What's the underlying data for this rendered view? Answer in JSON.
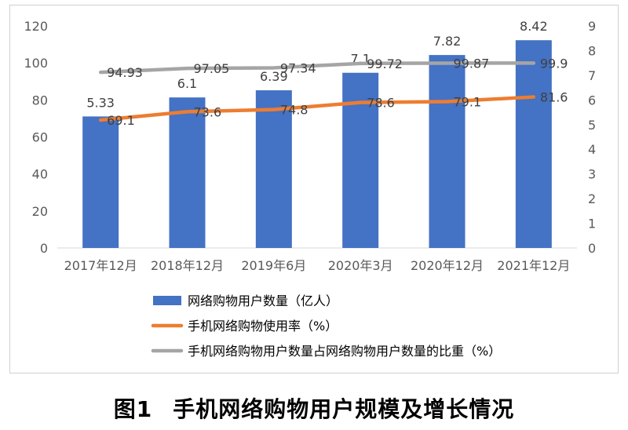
{
  "chart_data": {
    "type": "bar",
    "categories": [
      "2017年12月",
      "2018年12月",
      "2019年6月",
      "2020年3月",
      "2020年12月",
      "2021年12月"
    ],
    "left_axis": {
      "min": 0,
      "max": 120,
      "step": 20
    },
    "right_axis": {
      "min": 0,
      "max": 9,
      "step": 1
    },
    "series": [
      {
        "name": "网络购物用户数量（亿人）",
        "kind": "bar",
        "axis": "right",
        "values": [
          5.33,
          6.1,
          6.39,
          7.1,
          7.82,
          8.42
        ],
        "labels": [
          "5.33",
          "6.1",
          "6.39",
          "7.1",
          "7.82",
          "8.42"
        ],
        "color": "#4472C4"
      },
      {
        "name": "手机网络购物使用率（%）",
        "kind": "line",
        "axis": "left",
        "values": [
          69.1,
          73.6,
          74.8,
          78.6,
          79.1,
          81.6
        ],
        "labels": [
          "69.1",
          "73.6",
          "74.8",
          "78.6",
          "79.1",
          "81.6"
        ],
        "color": "#ED7D31"
      },
      {
        "name": "手机网络购物用户数量占网络购物用户数量的比重（%）",
        "kind": "line",
        "axis": "left",
        "values": [
          94.93,
          97.05,
          97.34,
          99.72,
          99.87,
          99.9
        ],
        "labels": [
          "94.93",
          "97.05",
          "97.34",
          "99.72",
          "99.87",
          "99.9"
        ],
        "color": "#A5A5A5"
      }
    ],
    "legend_position": "bottom"
  },
  "caption": {
    "figure": "图1",
    "title": "手机网络购物用户规模及增长情况"
  }
}
